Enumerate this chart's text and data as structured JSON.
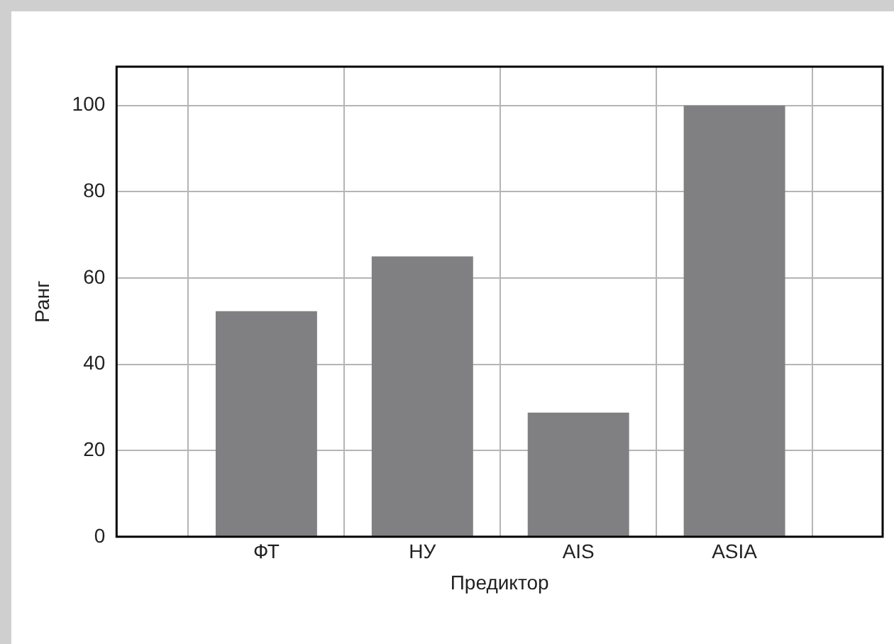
{
  "chart_data": {
    "type": "bar",
    "xlabel": "Предиктор",
    "ylabel": "Ранг",
    "categories": [
      "ФТ",
      "НУ",
      "AIS",
      "ASIA"
    ],
    "values": [
      52.3,
      65,
      28.8,
      100
    ],
    "color": "#808083",
    "ylim": [
      0,
      109
    ],
    "yticks": [
      0,
      20,
      40,
      60,
      80,
      100
    ],
    "grid": true
  }
}
